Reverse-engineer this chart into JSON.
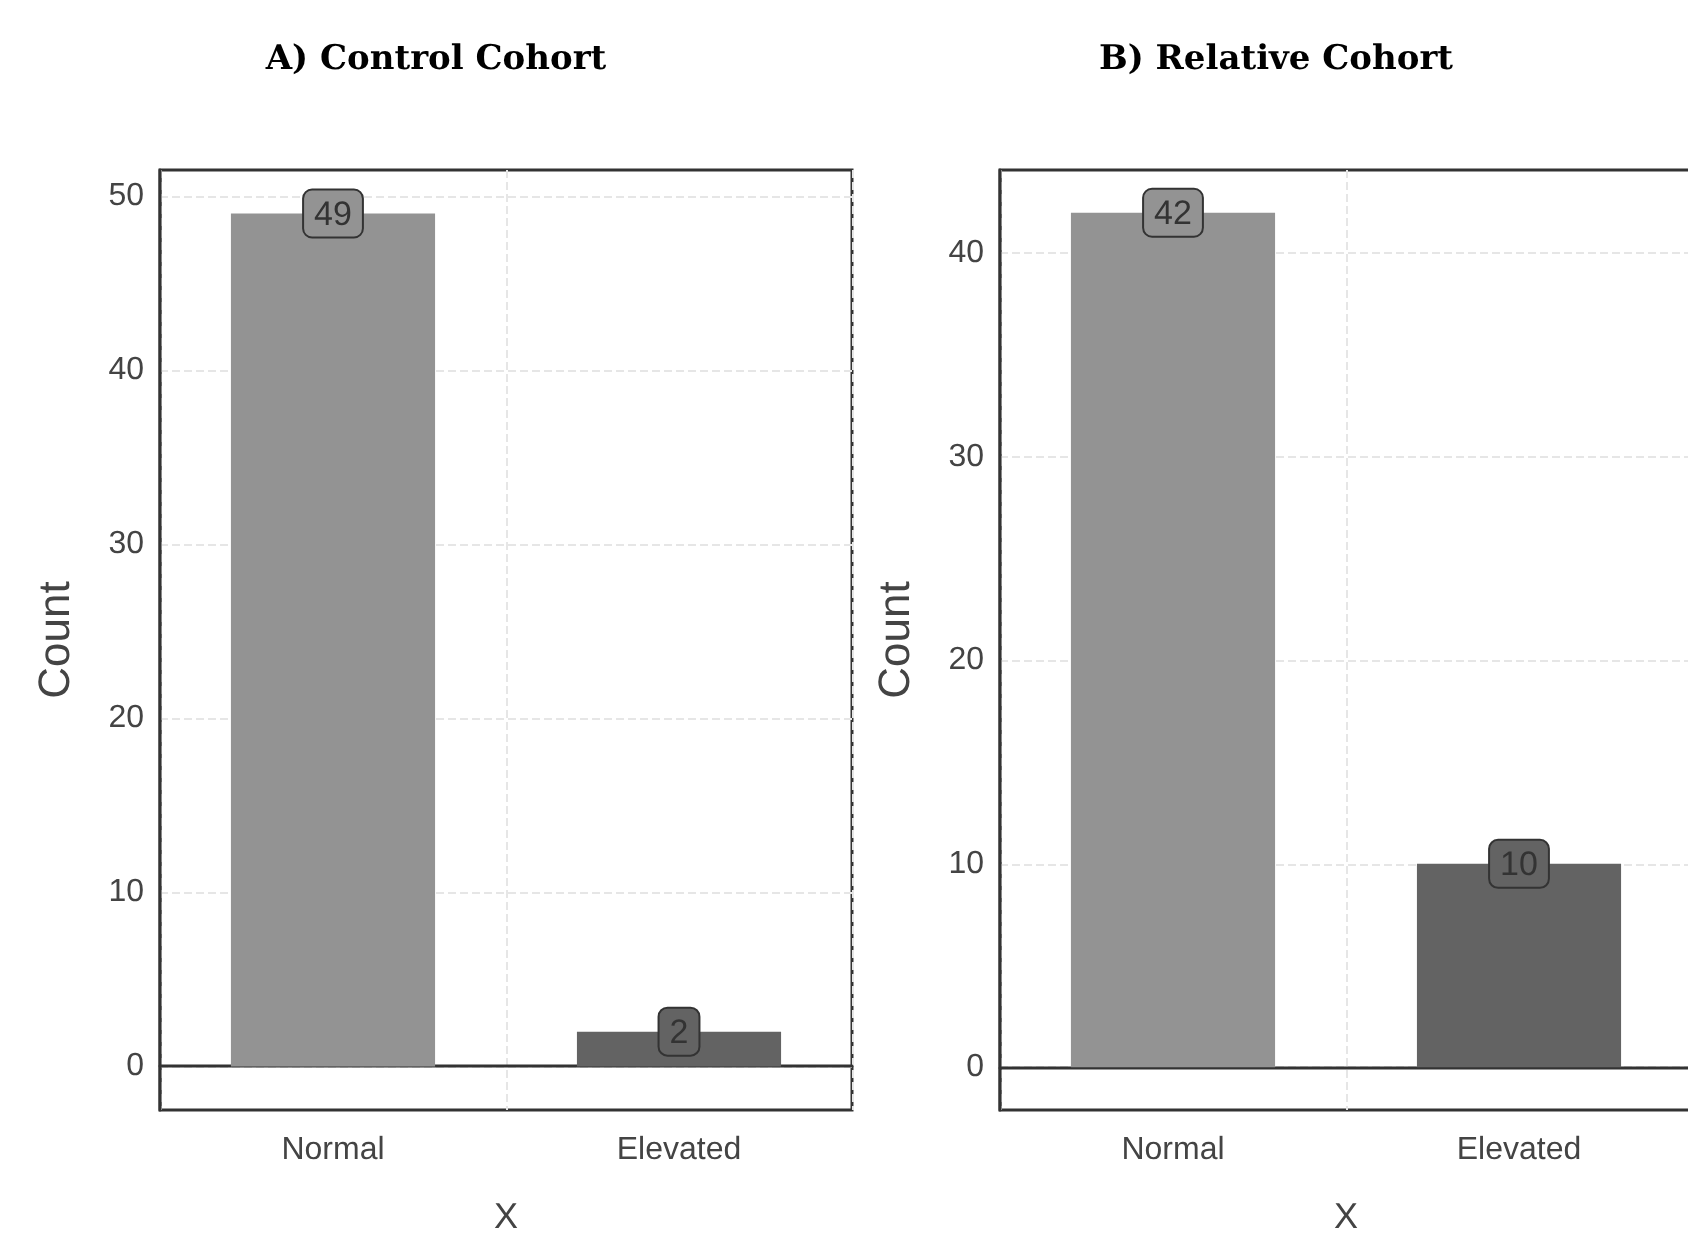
{
  "chart_data": [
    {
      "type": "bar",
      "title": "A) Control Cohort",
      "xlabel": "X",
      "ylabel": "Count",
      "categories": [
        "Normal",
        "Elevated"
      ],
      "values": [
        49,
        2
      ],
      "colors": [
        "#939393",
        "#636363"
      ],
      "ylim": [
        -2.5,
        51.5
      ],
      "yticks": [
        0,
        10,
        20,
        30,
        40,
        50
      ],
      "grid": true,
      "data_labels": true
    },
    {
      "type": "bar",
      "title": "B) Relative Cohort",
      "xlabel": "X",
      "ylabel": "Count",
      "categories": [
        "Normal",
        "Elevated"
      ],
      "values": [
        42,
        10
      ],
      "colors": [
        "#939393",
        "#636363"
      ],
      "ylim": [
        -2.1,
        44.1
      ],
      "yticks": [
        0,
        10,
        20,
        30,
        40
      ],
      "grid": true,
      "data_labels": true
    }
  ]
}
